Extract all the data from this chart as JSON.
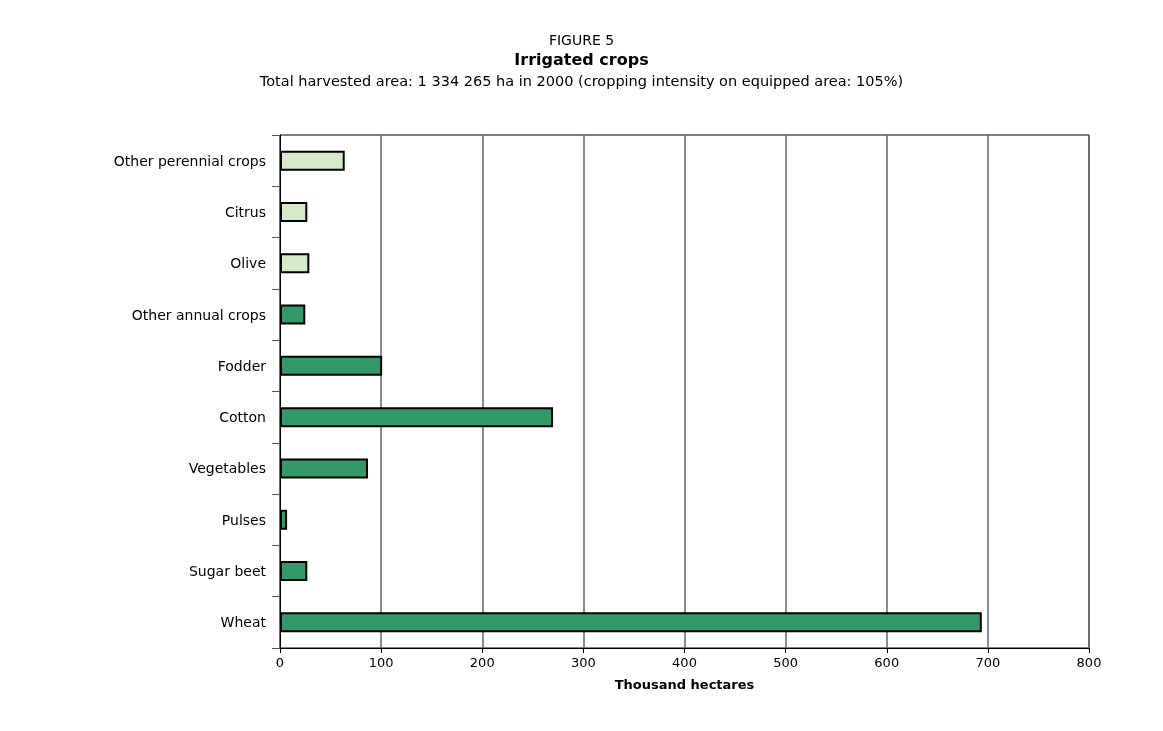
{
  "chart_data": {
    "type": "bar",
    "orientation": "horizontal",
    "title": "Irrigated crops",
    "subtitle": "Total harvested area: 1 334 265 ha in 2000 (cropping intensity on equipped area: 105%)",
    "annotations": [
      "FIGURE 5"
    ],
    "xlabel": "Thousand hectares",
    "categories": [
      "Other perennial crops",
      "Citrus",
      "Olive",
      "Other annual crops",
      "Fodder",
      "Cotton",
      "Vegetables",
      "Pulses",
      "Sugar beet",
      "Wheat"
    ],
    "values": [
      64,
      27,
      29,
      25,
      101,
      270,
      87,
      7,
      27,
      694
    ],
    "colors": [
      "#d4eac8",
      "#d4eac8",
      "#d4eac8",
      "#339966",
      "#339966",
      "#339966",
      "#339966",
      "#339966",
      "#339966",
      "#339966"
    ],
    "xlim": [
      0,
      800
    ],
    "xticks": [
      0,
      100,
      200,
      300,
      400,
      500,
      600,
      700,
      800
    ],
    "grid": "x"
  }
}
